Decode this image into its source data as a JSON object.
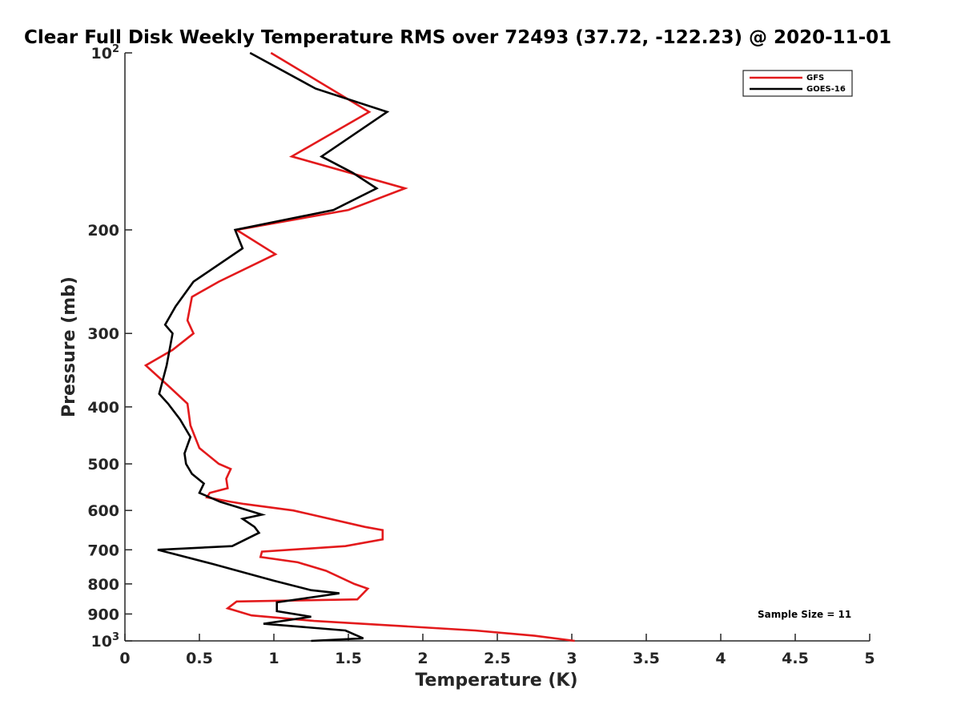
{
  "chart_data": {
    "type": "line",
    "title": "Clear Full Disk Weekly Temperature RMS over 72493 (37.72, -122.23) @ 2020-11-01",
    "xlabel": "Temperature (K)",
    "ylabel": "Pressure (mb)",
    "xlim": [
      0,
      5
    ],
    "ylim": [
      100,
      1000
    ],
    "yscale": "log",
    "y_reversed": true,
    "grid": false,
    "legend_position": "top-right",
    "x_ticks": [
      {
        "value": 0,
        "label": "0"
      },
      {
        "value": 0.5,
        "label": "0.5"
      },
      {
        "value": 1,
        "label": "1"
      },
      {
        "value": 1.5,
        "label": "1.5"
      },
      {
        "value": 2,
        "label": "2"
      },
      {
        "value": 2.5,
        "label": "2.5"
      },
      {
        "value": 3,
        "label": "3"
      },
      {
        "value": 3.5,
        "label": "3.5"
      },
      {
        "value": 4,
        "label": "4"
      },
      {
        "value": 4.5,
        "label": "4.5"
      },
      {
        "value": 5,
        "label": "5"
      }
    ],
    "y_ticks": [
      {
        "value": 100,
        "base": "10",
        "exp": "2"
      },
      {
        "value": 200,
        "base": "200",
        "exp": ""
      },
      {
        "value": 300,
        "base": "300",
        "exp": ""
      },
      {
        "value": 400,
        "base": "400",
        "exp": ""
      },
      {
        "value": 500,
        "base": "500",
        "exp": ""
      },
      {
        "value": 600,
        "base": "600",
        "exp": ""
      },
      {
        "value": 700,
        "base": "700",
        "exp": ""
      },
      {
        "value": 800,
        "base": "800",
        "exp": ""
      },
      {
        "value": 900,
        "base": "900",
        "exp": ""
      },
      {
        "value": 1000,
        "base": "10",
        "exp": "3"
      }
    ],
    "annotation": "Sample Size = 11",
    "series": [
      {
        "name": "GFS",
        "color": "#e31a1c",
        "points": [
          [
            0.98,
            100
          ],
          [
            1.64,
            126
          ],
          [
            1.12,
            150
          ],
          [
            1.88,
            170
          ],
          [
            1.5,
            185
          ],
          [
            0.75,
            200
          ],
          [
            1.01,
            220
          ],
          [
            0.63,
            245
          ],
          [
            0.45,
            260
          ],
          [
            0.42,
            285
          ],
          [
            0.46,
            300
          ],
          [
            0.32,
            320
          ],
          [
            0.14,
            340
          ],
          [
            0.3,
            370
          ],
          [
            0.42,
            395
          ],
          [
            0.44,
            430
          ],
          [
            0.5,
            470
          ],
          [
            0.63,
            500
          ],
          [
            0.71,
            510
          ],
          [
            0.68,
            530
          ],
          [
            0.69,
            550
          ],
          [
            0.57,
            560
          ],
          [
            0.55,
            570
          ],
          [
            0.71,
            580
          ],
          [
            0.8,
            585
          ],
          [
            1.13,
            600
          ],
          [
            1.61,
            640
          ],
          [
            1.73,
            648
          ],
          [
            1.73,
            672
          ],
          [
            1.48,
            690
          ],
          [
            0.92,
            705
          ],
          [
            0.91,
            720
          ],
          [
            1.16,
            735
          ],
          [
            1.35,
            760
          ],
          [
            1.54,
            800
          ],
          [
            1.63,
            815
          ],
          [
            1.6,
            830
          ],
          [
            1.56,
            850
          ],
          [
            0.75,
            857
          ],
          [
            0.69,
            880
          ],
          [
            0.85,
            905
          ],
          [
            1.27,
            925
          ],
          [
            1.9,
            945
          ],
          [
            2.35,
            960
          ],
          [
            2.75,
            980
          ],
          [
            3.02,
            1000
          ]
        ]
      },
      {
        "name": "GOES-16",
        "color": "#000000",
        "points": [
          [
            0.84,
            100
          ],
          [
            1.28,
            115
          ],
          [
            1.76,
            126
          ],
          [
            1.32,
            150
          ],
          [
            1.53,
            160
          ],
          [
            1.69,
            170
          ],
          [
            1.4,
            185
          ],
          [
            0.74,
            200
          ],
          [
            0.79,
            215
          ],
          [
            0.46,
            245
          ],
          [
            0.34,
            270
          ],
          [
            0.27,
            290
          ],
          [
            0.32,
            300
          ],
          [
            0.28,
            340
          ],
          [
            0.23,
            380
          ],
          [
            0.29,
            395
          ],
          [
            0.37,
            420
          ],
          [
            0.44,
            450
          ],
          [
            0.4,
            480
          ],
          [
            0.41,
            500
          ],
          [
            0.45,
            520
          ],
          [
            0.53,
            540
          ],
          [
            0.5,
            560
          ],
          [
            0.64,
            580
          ],
          [
            0.92,
            610
          ],
          [
            0.79,
            620
          ],
          [
            0.87,
            640
          ],
          [
            0.9,
            655
          ],
          [
            0.72,
            690
          ],
          [
            0.22,
            700
          ],
          [
            0.59,
            740
          ],
          [
            1.0,
            790
          ],
          [
            1.25,
            820
          ],
          [
            1.44,
            830
          ],
          [
            1.02,
            860
          ],
          [
            1.02,
            890
          ],
          [
            1.25,
            910
          ],
          [
            0.93,
            935
          ],
          [
            1.48,
            960
          ],
          [
            1.6,
            990
          ],
          [
            1.25,
            1000
          ]
        ]
      }
    ]
  }
}
